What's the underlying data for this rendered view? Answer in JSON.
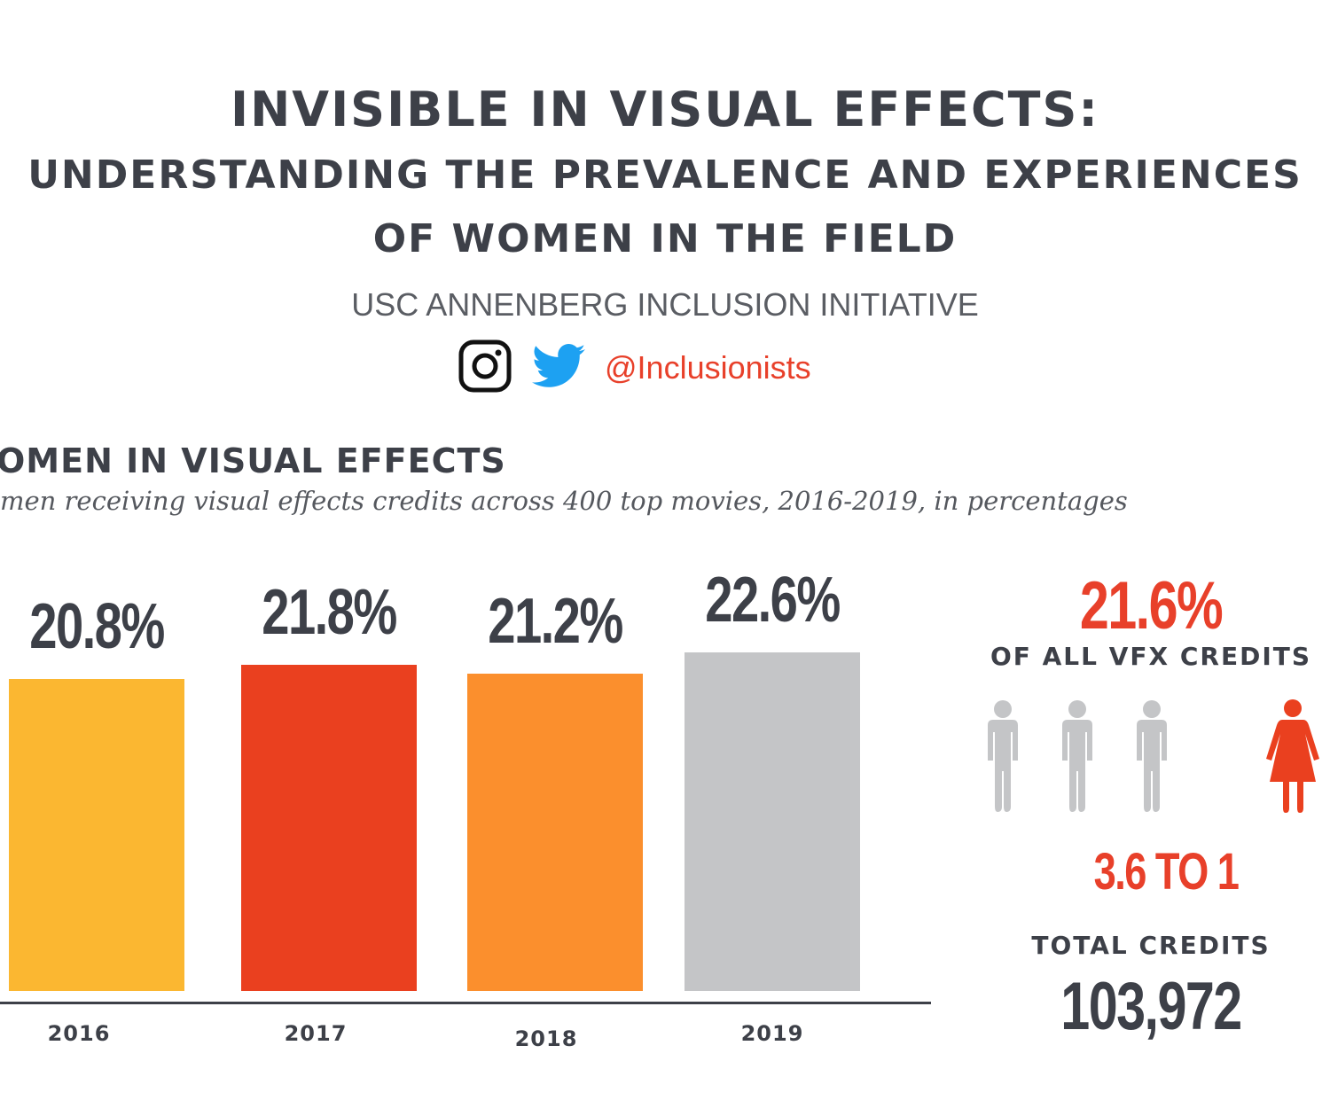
{
  "header": {
    "title_line1": "INVISIBLE IN VISUAL EFFECTS:",
    "title_line2": "UNDERSTANDING THE PREVALENCE AND EXPERIENCES",
    "title_line3": "OF WOMEN IN THE FIELD",
    "organization": "USC ANNENBERG INCLUSION INITIATIVE",
    "social_icons": [
      "instagram-icon",
      "twitter-icon"
    ],
    "handle": "@Inclusionists"
  },
  "chart_data": {
    "type": "bar",
    "title": "OMEN IN VISUAL EFFECTS",
    "subtitle": "men receiving visual effects credits across 400 top movies, 2016-2019, in percentages",
    "categories": [
      "2016",
      "2017",
      "2018",
      "2019"
    ],
    "values": [
      20.8,
      21.8,
      21.2,
      22.6
    ],
    "data_labels": [
      "20.8%",
      "21.8%",
      "21.2%",
      "22.6%"
    ],
    "colors": [
      "#fbb731",
      "#ea401f",
      "#fb8f2d",
      "#c4c5c7"
    ],
    "xlabel": "",
    "ylabel": "",
    "ylim": [
      0,
      22.6
    ],
    "grid": false
  },
  "sidebar": {
    "overall_pct": "21.6%",
    "overall_caption": "OF ALL VFX CREDITS",
    "ratio": "3.6 TO 1",
    "ratio_value": 3.6,
    "total_label": "TOTAL CREDITS",
    "total_value": "103,972",
    "male_color": "#c4c5c7",
    "female_color": "#ea401f",
    "accent": "#e8402a"
  }
}
